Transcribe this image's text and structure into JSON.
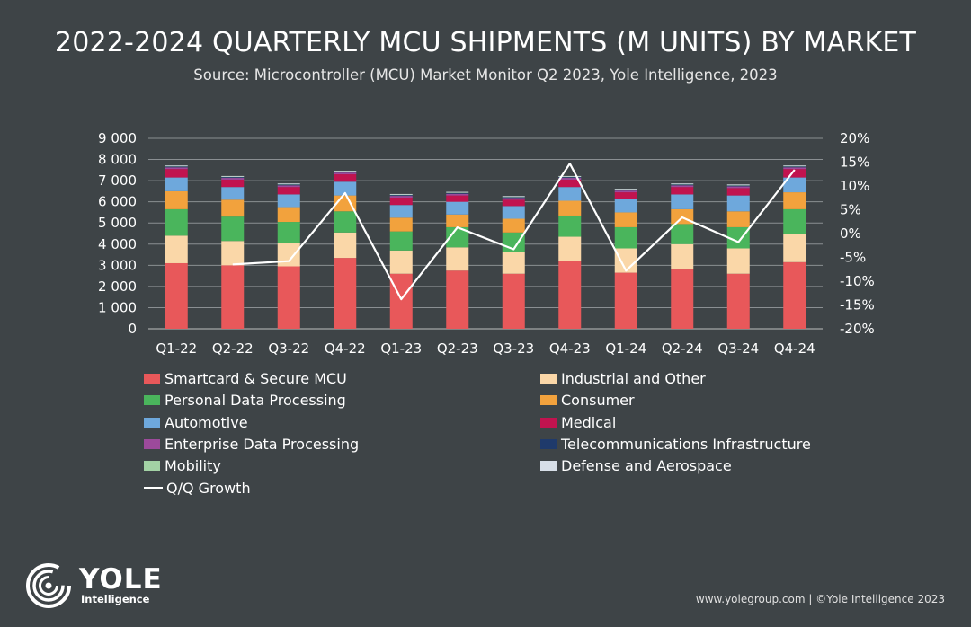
{
  "header": {
    "title": "2022-2024 QUARTERLY MCU SHIPMENTS (M UNITS) BY MARKET",
    "subtitle": "Source: Microcontroller (MCU) Market Monitor Q2 2023, Yole Intelligence, 2023"
  },
  "chart_data": {
    "type": "bar",
    "stacked": true,
    "categories": [
      "Q1-22",
      "Q2-22",
      "Q3-22",
      "Q4-22",
      "Q1-23",
      "Q2-23",
      "Q3-23",
      "Q4-23",
      "Q1-24",
      "Q2-24",
      "Q3-24",
      "Q4-24"
    ],
    "ylim": [
      0,
      9000
    ],
    "yticks": [
      "0",
      "1 000",
      "2 000",
      "3 000",
      "4 000",
      "5 000",
      "6 000",
      "7 000",
      "8 000",
      "9 000"
    ],
    "y2lim": [
      -20,
      20
    ],
    "y2ticks": [
      "-20%",
      "-15%",
      "-10%",
      "-5%",
      "0%",
      "5%",
      "10%",
      "15%",
      "20%"
    ],
    "grid": true,
    "legend_position": "bottom",
    "series": [
      {
        "name": "Smartcard & Secure MCU",
        "color": "#e8585a",
        "values": [
          3100,
          3000,
          2950,
          3350,
          2600,
          2750,
          2600,
          3200,
          2650,
          2800,
          2600,
          3150
        ]
      },
      {
        "name": "Industrial and Other",
        "color": "#fad7a8",
        "values": [
          1300,
          1150,
          1100,
          1200,
          1100,
          1100,
          1050,
          1150,
          1150,
          1200,
          1200,
          1350
        ]
      },
      {
        "name": "Personal Data Processing",
        "color": "#4ab55c",
        "values": [
          1250,
          1150,
          1000,
          1000,
          900,
          950,
          900,
          1000,
          1000,
          950,
          1000,
          1150
        ]
      },
      {
        "name": "Consumer",
        "color": "#f2a23d",
        "values": [
          850,
          800,
          700,
          750,
          650,
          600,
          650,
          700,
          700,
          700,
          750,
          800
        ]
      },
      {
        "name": "Automotive",
        "color": "#6ea8dc",
        "values": [
          650,
          600,
          600,
          650,
          600,
          600,
          600,
          650,
          650,
          700,
          750,
          700
        ]
      },
      {
        "name": "Medical",
        "color": "#c1134f",
        "values": [
          400,
          350,
          350,
          350,
          350,
          300,
          300,
          350,
          300,
          350,
          350,
          400
        ]
      },
      {
        "name": "Enterprise Data Processing",
        "color": "#9c4a9b",
        "values": [
          80,
          80,
          80,
          80,
          80,
          80,
          80,
          80,
          80,
          80,
          80,
          80
        ]
      },
      {
        "name": "Telecommunications Infrastructure",
        "color": "#1f3a6b",
        "values": [
          40,
          40,
          40,
          40,
          40,
          40,
          40,
          40,
          40,
          40,
          40,
          40
        ]
      },
      {
        "name": "Mobility",
        "color": "#a3d2a5",
        "values": [
          20,
          20,
          20,
          20,
          20,
          20,
          20,
          20,
          20,
          20,
          20,
          20
        ]
      },
      {
        "name": "Defense and Aerospace",
        "color": "#d7dfe8",
        "values": [
          30,
          30,
          30,
          30,
          30,
          30,
          30,
          30,
          30,
          30,
          30,
          30
        ]
      },
      {
        "name": "Q/Q Growth",
        "type": "line",
        "axis": "secondary",
        "color": "#ffffff",
        "values": [
          null,
          -6.5,
          -5.8,
          8.5,
          -13.8,
          1.3,
          -3.3,
          14.7,
          -7.8,
          3.4,
          -1.8,
          13.4
        ]
      }
    ]
  },
  "brand": {
    "logo_name": "YOLE",
    "logo_sub": "Intelligence",
    "footer": "www.yolegroup.com | ©Yole Intelligence 2023"
  }
}
